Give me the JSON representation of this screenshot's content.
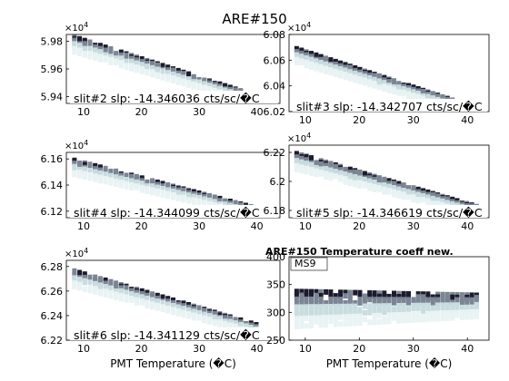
{
  "figure": {
    "title": "ARE#150"
  },
  "colors": {
    "dark": "#1c1c2e",
    "mid": "#7b8594",
    "light": "#c9dde0",
    "pale": "#e9f3f3"
  },
  "chart_data": [
    {
      "type": "heatmap",
      "panel": "slit2",
      "xticks": [
        10,
        20,
        30,
        40
      ],
      "ytick_labels": [
        "5.94",
        "5.96",
        "5.98"
      ],
      "yticks": [
        5.94,
        5.96,
        5.98
      ],
      "xlim": [
        7,
        44
      ],
      "ylim": [
        5.935,
        5.985
      ],
      "exponent": "×10",
      "exponent_sup": "4",
      "annotation": "slit#2 slp: -14.346036 cts/sc/�C",
      "xlabel": "",
      "band": {
        "x": [
          8,
          40
        ],
        "y0": [
          5.982,
          5.94
        ],
        "spread": 0.012
      }
    },
    {
      "type": "heatmap",
      "panel": "slit3",
      "xticks": [
        10,
        20,
        30,
        40
      ],
      "ytick_labels": [
        "6.02",
        "6.04",
        "6.06",
        "6.08"
      ],
      "yticks": [
        6.02,
        6.04,
        6.06,
        6.08
      ],
      "xlim": [
        7,
        44
      ],
      "ylim": [
        6.02,
        6.08
      ],
      "exponent": "×10",
      "exponent_sup": "4",
      "annotation": "slit#3 slp: -14.342707 cts/sc/�C",
      "xlabel": "",
      "band": {
        "x": [
          8,
          42
        ],
        "y0": [
          6.068,
          6.022
        ],
        "spread": 0.012
      }
    },
    {
      "type": "heatmap",
      "panel": "slit4",
      "xticks": [
        10,
        20,
        30,
        40
      ],
      "ytick_labels": [
        "6.12",
        "6.14",
        "6.16"
      ],
      "yticks": [
        6.12,
        6.14,
        6.16
      ],
      "xlim": [
        7,
        44
      ],
      "ylim": [
        6.115,
        6.165
      ],
      "exponent": "×10",
      "exponent_sup": "4",
      "annotation": "slit#4 slp: -14.344099 cts/sc/�C",
      "xlabel": "",
      "band": {
        "x": [
          8,
          40
        ],
        "y0": [
          6.158,
          6.122
        ],
        "spread": 0.012
      }
    },
    {
      "type": "heatmap",
      "panel": "slit5",
      "xticks": [
        10,
        20,
        30,
        40
      ],
      "ytick_labels": [
        "6.18",
        "6.2",
        "6.22"
      ],
      "yticks": [
        6.18,
        6.2,
        6.22
      ],
      "xlim": [
        7,
        44
      ],
      "ylim": [
        6.175,
        6.225
      ],
      "exponent": "×10",
      "exponent_sup": "4",
      "annotation": "slit#5 slp: -14.346619 cts/sc/�C",
      "xlabel": "",
      "band": {
        "x": [
          8,
          42
        ],
        "y0": [
          6.218,
          6.182
        ],
        "spread": 0.012
      }
    },
    {
      "type": "heatmap",
      "panel": "slit6",
      "xticks": [
        10,
        20,
        30,
        40
      ],
      "ytick_labels": [
        "6.22",
        "6.24",
        "6.26",
        "6.28"
      ],
      "yticks": [
        6.22,
        6.24,
        6.26,
        6.28
      ],
      "xlim": [
        7,
        44
      ],
      "ylim": [
        6.22,
        6.285
      ],
      "exponent": "×10",
      "exponent_sup": "4",
      "annotation": "slit#6 slp: -14.341129 cts/sc/�C",
      "xlabel": "PMT Temperature (�C)",
      "band": {
        "x": [
          8,
          40
        ],
        "y0": [
          6.275,
          6.232
        ],
        "spread": 0.014
      }
    },
    {
      "type": "heatmap",
      "panel": "ms9",
      "title": "ARE#150 Temperature coeff new.",
      "xticks": [
        10,
        20,
        30,
        40
      ],
      "ytick_labels": [
        "250",
        "300",
        "350",
        "400"
      ],
      "yticks": [
        250,
        300,
        350,
        400
      ],
      "xlim": [
        7,
        44
      ],
      "ylim": [
        250,
        400
      ],
      "annotation": "MS9",
      "xlabel": "PMT Temperature (�C)",
      "band": {
        "x": [
          8,
          42
        ],
        "y0": [
          325,
          325
        ],
        "spread": 70
      }
    }
  ]
}
